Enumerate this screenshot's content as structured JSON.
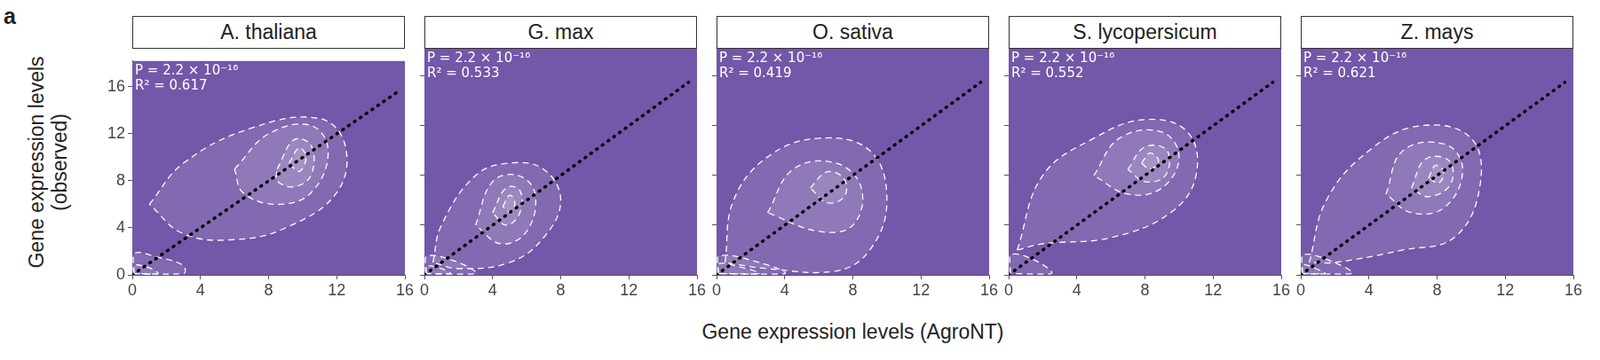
{
  "figure_label": "a",
  "chart_data": [
    {
      "type": "scatter",
      "title": "A. thaliana",
      "ylabel": "Gene expression levels\n(observed)",
      "annotations": [
        "P = 2.2 × 10⁻¹⁶",
        "R² = 0.617"
      ],
      "xlim": [
        0,
        16
      ],
      "ylim": [
        0,
        18.2
      ],
      "xticks": [
        0,
        4,
        8,
        12,
        16
      ],
      "yticks": [
        0,
        4,
        8,
        12,
        16
      ],
      "grid": false,
      "tick_labels": true,
      "series": [
        {
          "type": "line",
          "line_style": "dotted",
          "color": "#000000",
          "x": [
            0,
            15.5
          ],
          "y": [
            0,
            15.5
          ]
        },
        {
          "type": "line",
          "line_style": "dashed",
          "color": "#ffffff",
          "x": [
            1,
            3,
            7,
            11,
            12.5,
            12,
            9,
            6,
            3,
            1
          ],
          "y": [
            6,
            9.5,
            12.5,
            13.3,
            11,
            7,
            4,
            3,
            3.5,
            6
          ]
        },
        {
          "type": "line",
          "line_style": "dashed",
          "color": "#ffffff",
          "x": [
            6,
            8,
            10.5,
            11.5,
            10.5,
            8.5,
            6.5,
            6
          ],
          "y": [
            9,
            12,
            12.7,
            10.5,
            7,
            6,
            7,
            9
          ]
        },
        {
          "type": "line",
          "line_style": "dashed",
          "color": "#ffffff",
          "x": [
            8.5,
            9.5,
            10.5,
            10.5,
            9.5,
            8.5,
            8.5
          ],
          "y": [
            9,
            11.5,
            11,
            8.5,
            7.5,
            8,
            9
          ]
        },
        {
          "type": "line",
          "line_style": "dashed",
          "color": "#ffffff",
          "x": [
            9.2,
            9.8,
            10.2,
            9.8,
            9.2
          ],
          "y": [
            9.5,
            10.8,
            10,
            8.8,
            9.5
          ]
        },
        {
          "type": "line",
          "line_style": "dashed",
          "color": "#ffffff",
          "x": [
            0.1,
            0.1,
            1.5,
            3,
            3,
            0.1
          ],
          "y": [
            0.1,
            1.8,
            1.5,
            0.8,
            0.1,
            0.1
          ]
        },
        {
          "type": "line",
          "line_style": "dashed",
          "color": "#ffffff",
          "x": [
            0.1,
            0.1,
            1,
            1.5,
            0.1
          ],
          "y": [
            0.1,
            0.8,
            0.6,
            0.1,
            0.1
          ]
        }
      ]
    },
    {
      "type": "scatter",
      "title": "G. max",
      "annotations": [
        "P = 2.2 × 10⁻¹⁶",
        "R² = 0.533"
      ],
      "xlim": [
        0,
        16
      ],
      "ylim": [
        0,
        18.2
      ],
      "xticks": [
        0,
        4,
        8,
        12,
        16
      ],
      "yticks": [
        0,
        4,
        8,
        12,
        16
      ],
      "grid": false,
      "tick_labels": "x",
      "series": [
        {
          "type": "line",
          "line_style": "dotted",
          "color": "#000000",
          "x": [
            0,
            15.5
          ],
          "y": [
            0,
            15.5
          ]
        },
        {
          "type": "line",
          "line_style": "dashed",
          "color": "#ffffff",
          "x": [
            0.5,
            1,
            3,
            5,
            7,
            8,
            7,
            5,
            2,
            0.5
          ],
          "y": [
            1,
            4,
            8,
            9,
            8.5,
            6,
            3,
            1,
            0.5,
            1
          ]
        },
        {
          "type": "line",
          "line_style": "dashed",
          "color": "#ffffff",
          "x": [
            3,
            4,
            5.5,
            6.5,
            6,
            4.5,
            3
          ],
          "y": [
            4,
            7.5,
            8,
            6.5,
            3.5,
            2.5,
            4
          ]
        },
        {
          "type": "line",
          "line_style": "dashed",
          "color": "#ffffff",
          "x": [
            4,
            4.8,
            5.6,
            5.6,
            4.8,
            4
          ],
          "y": [
            5,
            7,
            6.8,
            5,
            4,
            5
          ]
        },
        {
          "type": "line",
          "line_style": "dashed",
          "color": "#ffffff",
          "x": [
            4.6,
            5,
            5.3,
            5.1,
            4.6
          ],
          "y": [
            5.5,
            6.4,
            5.9,
            5,
            5.5
          ]
        },
        {
          "type": "line",
          "line_style": "dashed",
          "color": "#ffffff",
          "x": [
            0.1,
            0.1,
            2,
            3,
            0.1
          ],
          "y": [
            0.1,
            1.5,
            1,
            0.1,
            0.1
          ]
        },
        {
          "type": "line",
          "line_style": "dashed",
          "color": "#ffffff",
          "x": [
            0.1,
            0.1,
            1,
            1.5,
            0.1
          ],
          "y": [
            0.1,
            0.7,
            0.5,
            0.1,
            0.1
          ]
        }
      ]
    },
    {
      "type": "scatter",
      "title": "O. sativa",
      "xlabel": "Gene expression levels (AgroNT)",
      "annotations": [
        "P = 2.2 × 10⁻¹⁶",
        "R² = 0.419"
      ],
      "xlim": [
        0,
        16
      ],
      "ylim": [
        0,
        18.2
      ],
      "xticks": [
        0,
        4,
        8,
        12,
        16
      ],
      "yticks": [
        0,
        4,
        8,
        12,
        16
      ],
      "grid": false,
      "tick_labels": "x",
      "series": [
        {
          "type": "line",
          "line_style": "dotted",
          "color": "#000000",
          "x": [
            0,
            15.5
          ],
          "y": [
            0,
            15.5
          ]
        },
        {
          "type": "line",
          "line_style": "dashed",
          "color": "#ffffff",
          "x": [
            0.5,
            1,
            3,
            6,
            9,
            10,
            9,
            7,
            3,
            0.5
          ],
          "y": [
            1,
            6,
            9.5,
            11,
            10,
            6,
            2,
            0.3,
            0.5,
            1
          ]
        },
        {
          "type": "line",
          "line_style": "dashed",
          "color": "#ffffff",
          "x": [
            3,
            4.5,
            7,
            8.5,
            8,
            6,
            3
          ],
          "y": [
            5,
            8.5,
            9,
            7,
            4,
            3.5,
            5
          ]
        },
        {
          "type": "line",
          "line_style": "dashed",
          "color": "#ffffff",
          "x": [
            5.5,
            6.5,
            7.5,
            7.5,
            6.5,
            5.5
          ],
          "y": [
            7,
            8.3,
            7.7,
            6.3,
            5.8,
            7
          ]
        },
        {
          "type": "line",
          "line_style": "dashed",
          "color": "#ffffff",
          "x": [
            0.1,
            0.1,
            2.5,
            4,
            0.1
          ],
          "y": [
            0.1,
            1.5,
            1,
            0.1,
            0.1
          ]
        },
        {
          "type": "line",
          "line_style": "dashed",
          "color": "#ffffff",
          "x": [
            0.1,
            0.1,
            1.5,
            2.5,
            0.1
          ],
          "y": [
            0.1,
            0.9,
            0.6,
            0.1,
            0.1
          ]
        }
      ]
    },
    {
      "type": "scatter",
      "title": "S. lycopersicum",
      "annotations": [
        "P = 2.2 × 10⁻¹⁶",
        "R² = 0.552"
      ],
      "xlim": [
        0,
        16
      ],
      "ylim": [
        0,
        18.2
      ],
      "xticks": [
        0,
        4,
        8,
        12,
        16
      ],
      "yticks": [
        0,
        4,
        8,
        12,
        16
      ],
      "grid": false,
      "tick_labels": "x",
      "series": [
        {
          "type": "line",
          "line_style": "dotted",
          "color": "#000000",
          "x": [
            0,
            15.5
          ],
          "y": [
            0,
            15.5
          ]
        },
        {
          "type": "line",
          "line_style": "dashed",
          "color": "#ffffff",
          "x": [
            0.5,
            2,
            5,
            8,
            10.5,
            11,
            9.5,
            6,
            2,
            0.5
          ],
          "y": [
            2,
            8,
            11,
            12.5,
            11.5,
            8,
            5,
            3,
            2.5,
            2
          ]
        },
        {
          "type": "line",
          "line_style": "dashed",
          "color": "#ffffff",
          "x": [
            5,
            6.5,
            9,
            10,
            9,
            7,
            5
          ],
          "y": [
            8,
            11,
            11.5,
            9.5,
            7,
            6.5,
            8
          ]
        },
        {
          "type": "line",
          "line_style": "dashed",
          "color": "#ffffff",
          "x": [
            7,
            8,
            9.3,
            9.2,
            8,
            7
          ],
          "y": [
            8.5,
            10.3,
            10,
            8,
            7.5,
            8.5
          ]
        },
        {
          "type": "line",
          "line_style": "dashed",
          "color": "#ffffff",
          "x": [
            7.8,
            8.3,
            8.8,
            8.3,
            7.8
          ],
          "y": [
            9,
            9.8,
            9.2,
            8.5,
            9
          ]
        },
        {
          "type": "line",
          "line_style": "dashed",
          "color": "#ffffff",
          "x": [
            0.1,
            0.1,
            1.5,
            2.5,
            0.1
          ],
          "y": [
            0.1,
            1.6,
            1.2,
            0.1,
            0.1
          ]
        }
      ]
    },
    {
      "type": "scatter",
      "title": "Z. mays",
      "annotations": [
        "P = 2.2 × 10⁻¹⁶",
        "R² = 0.621"
      ],
      "xlim": [
        0,
        16
      ],
      "ylim": [
        0,
        18.2
      ],
      "xticks": [
        0,
        4,
        8,
        12,
        16
      ],
      "yticks": [
        0,
        4,
        8,
        12,
        16
      ],
      "grid": false,
      "tick_labels": "x",
      "series": [
        {
          "type": "line",
          "line_style": "dotted",
          "color": "#000000",
          "x": [
            0,
            15.5
          ],
          "y": [
            0,
            15.5
          ]
        },
        {
          "type": "line",
          "line_style": "dashed",
          "color": "#ffffff",
          "x": [
            0.5,
            1.5,
            4,
            7,
            10,
            10.5,
            9,
            6,
            2,
            0.5
          ],
          "y": [
            1,
            6,
            10,
            12,
            11,
            7,
            3,
            2,
            1,
            1
          ]
        },
        {
          "type": "line",
          "line_style": "dashed",
          "color": "#ffffff",
          "x": [
            5,
            6,
            8.5,
            9.5,
            8.5,
            6.5,
            5
          ],
          "y": [
            6.5,
            10,
            10.5,
            8.5,
            5.5,
            5,
            6.5
          ]
        },
        {
          "type": "line",
          "line_style": "dashed",
          "color": "#ffffff",
          "x": [
            6.5,
            7.3,
            8.7,
            8.8,
            7.5,
            6.5
          ],
          "y": [
            7,
            9.3,
            9.2,
            7.3,
            6.3,
            7
          ]
        },
        {
          "type": "line",
          "line_style": "dashed",
          "color": "#ffffff",
          "x": [
            7.5,
            7.9,
            8.4,
            8.1,
            7.5
          ],
          "y": [
            7.8,
            8.8,
            8.3,
            7.4,
            7.8
          ]
        },
        {
          "type": "line",
          "line_style": "dashed",
          "color": "#ffffff",
          "x": [
            0.1,
            0.1,
            1.8,
            3,
            0.1
          ],
          "y": [
            0.1,
            1.6,
            1.1,
            0.1,
            0.1
          ]
        },
        {
          "type": "line",
          "line_style": "dashed",
          "color": "#ffffff",
          "x": [
            0.1,
            0.1,
            0.9,
            1.4,
            0.1
          ],
          "y": [
            0.1,
            0.8,
            0.5,
            0.1,
            0.1
          ]
        }
      ]
    }
  ]
}
